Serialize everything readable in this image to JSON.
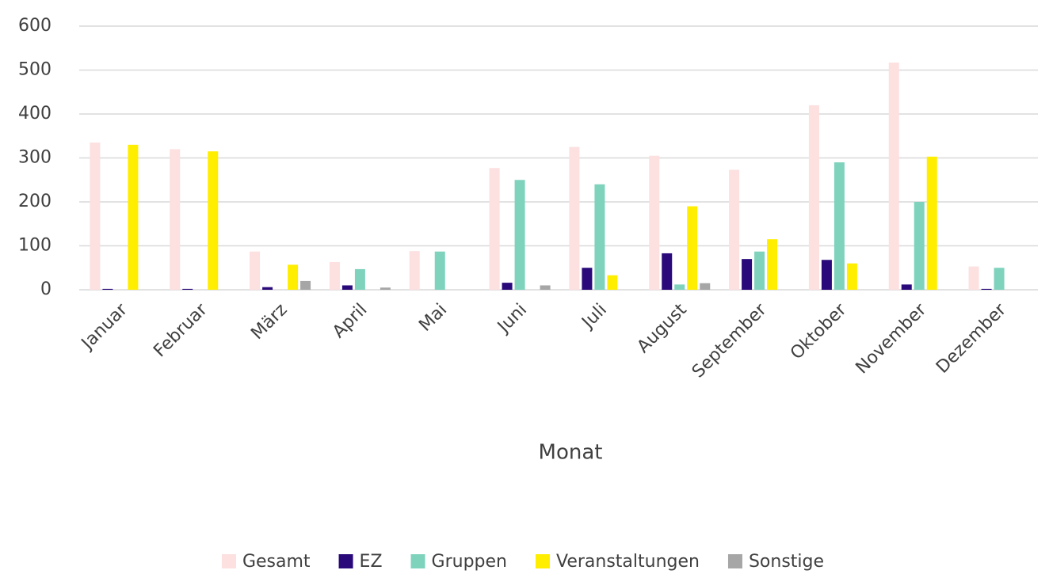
{
  "chart_data": {
    "type": "bar",
    "x_label": "Monat",
    "categories": [
      "Januar",
      "Februar",
      "März",
      "April",
      "Mai",
      "Juni",
      "Juli",
      "August",
      "September",
      "Oktober",
      "November",
      "Dezember"
    ],
    "series": [
      {
        "name": "Gesamt",
        "color": "#fde0e0",
        "values": [
          335,
          320,
          87,
          63,
          88,
          277,
          325,
          305,
          273,
          420,
          517,
          53
        ]
      },
      {
        "name": "EZ",
        "color": "#2a0a7a",
        "values": [
          2,
          2,
          6,
          10,
          0,
          16,
          50,
          83,
          70,
          68,
          12,
          2
        ]
      },
      {
        "name": "Gruppen",
        "color": "#7fd3bd",
        "values": [
          0,
          0,
          0,
          47,
          87,
          250,
          240,
          12,
          87,
          290,
          200,
          50
        ]
      },
      {
        "name": "Veranstaltungen",
        "color": "#ffee00",
        "values": [
          330,
          315,
          57,
          0,
          0,
          0,
          33,
          190,
          115,
          60,
          303,
          0
        ]
      },
      {
        "name": "Sonstige",
        "color": "#a6a6a6",
        "values": [
          0,
          0,
          20,
          5,
          0,
          10,
          0,
          15,
          0,
          0,
          0,
          0
        ]
      }
    ],
    "ylim": [
      0,
      600
    ],
    "yticks": [
      0,
      100,
      200,
      300,
      400,
      500,
      600
    ],
    "grid": true,
    "legend": "bottom"
  }
}
